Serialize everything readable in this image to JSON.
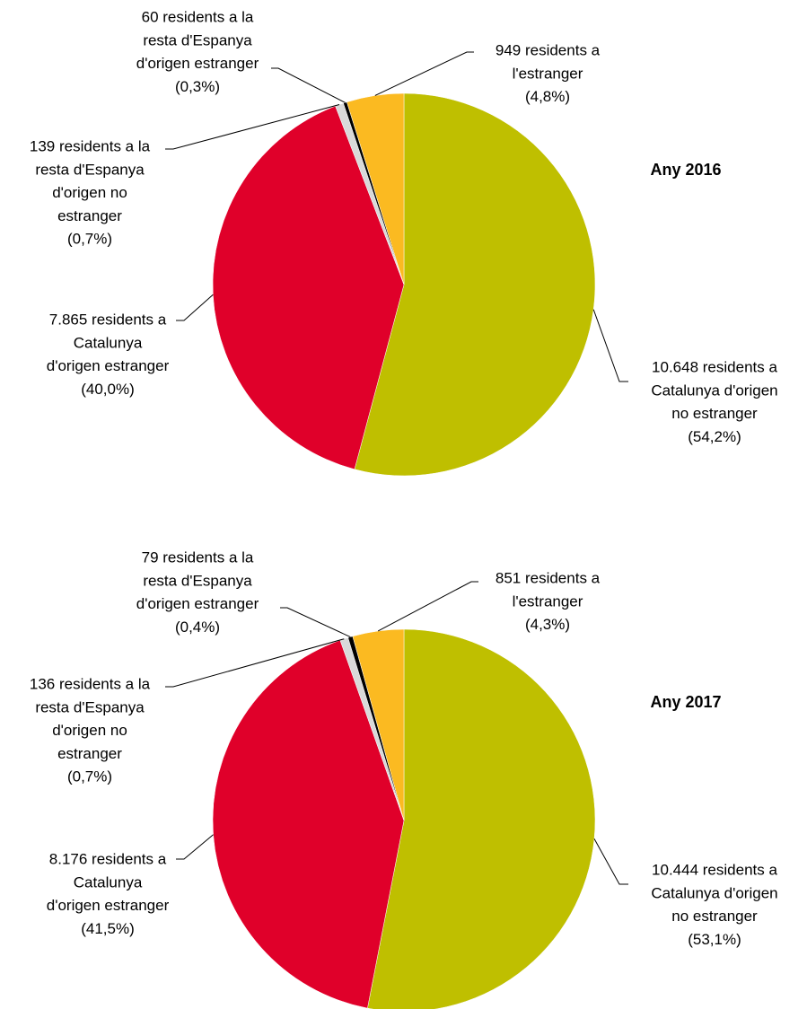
{
  "chart_data": [
    {
      "type": "pie",
      "title": "Any 2016",
      "values": [
        10648,
        7865,
        139,
        60,
        949
      ],
      "colors": [
        "#bfbf00",
        "#e0002a",
        "#d9d9d9",
        "#000000",
        "#fbba21"
      ],
      "value_labels": [
        [
          "10.648 residents a",
          "Catalunya d'origen",
          "no estranger",
          "(54,2%)"
        ],
        [
          "7.865 residents a",
          "Catalunya",
          "d'origen estranger",
          "(40,0%)"
        ],
        [
          "139 residents a la",
          "resta d'Espanya",
          "d'origen no",
          "estranger",
          "(0,7%)"
        ],
        [
          "60 residents a la",
          "resta d'Espanya",
          "d'origen estranger",
          "(0,3%)"
        ],
        [
          "949 residents a",
          "l'estranger",
          "(4,8%)"
        ]
      ]
    },
    {
      "type": "pie",
      "title": "Any 2017",
      "values": [
        10444,
        8176,
        136,
        79,
        851
      ],
      "colors": [
        "#bfbf00",
        "#e0002a",
        "#d9d9d9",
        "#000000",
        "#fbba21"
      ],
      "value_labels": [
        [
          "10.444 residents a",
          "Catalunya d'origen",
          "no estranger",
          "(53,1%)"
        ],
        [
          "8.176 residents a",
          "Catalunya",
          "d'origen estranger",
          "(41,5%)"
        ],
        [
          "136 residents a la",
          "resta d'Espanya",
          "d'origen no",
          "estranger",
          "(0,7%)"
        ],
        [
          "79 residents a la",
          "resta d'Espanya",
          "d'origen estranger",
          "(0,4%)"
        ],
        [
          "851 residents a",
          "l'estranger",
          "(4,3%)"
        ]
      ]
    }
  ]
}
